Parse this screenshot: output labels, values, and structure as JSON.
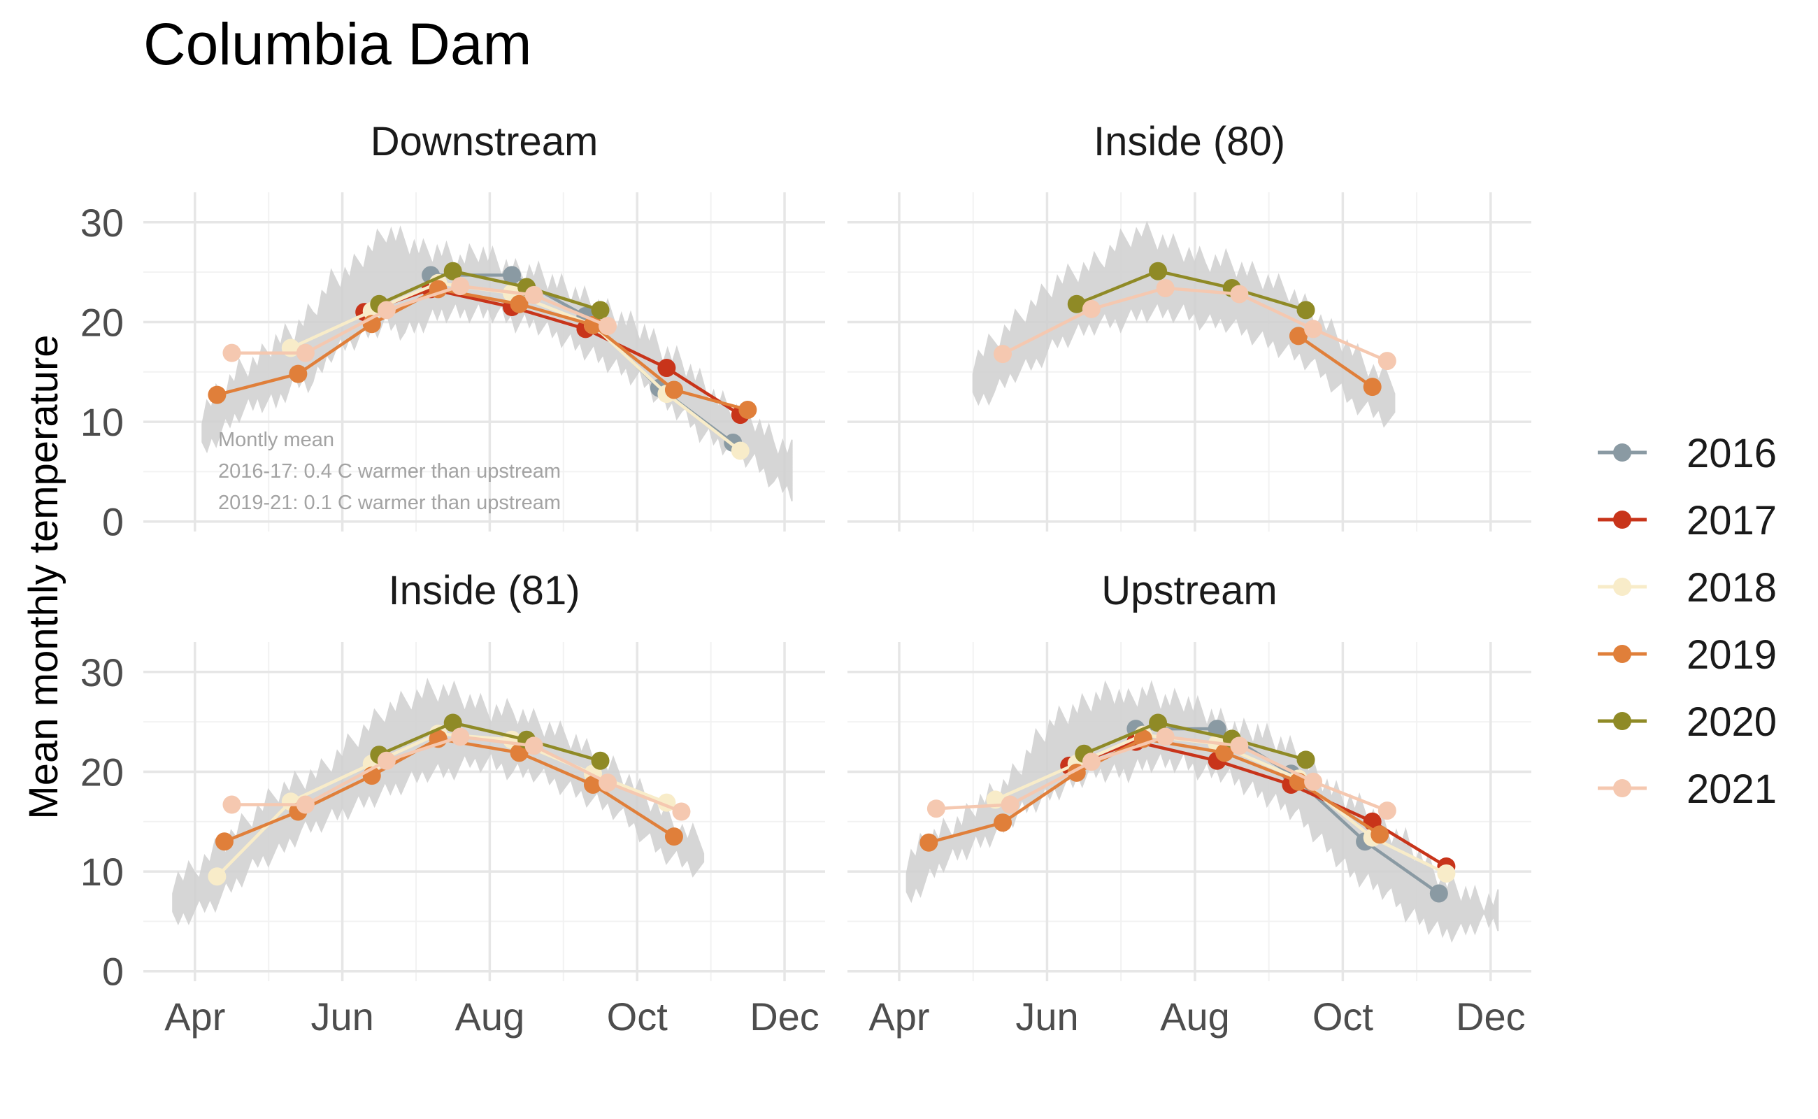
{
  "title": "Columbia Dam",
  "ylabel": "Mean monthly temperature",
  "colors": {
    "2016": "#8a9aa3",
    "2017": "#c8341a",
    "2018": "#f8ecc9",
    "2019": "#e07f3a",
    "2020": "#8f8a26",
    "2021": "#f5c8b0",
    "band": "#d2d2d2",
    "grid_major": "#e6e6e6",
    "grid_minor": "#f2f2f2",
    "text": "#4d4d4d",
    "annotation": "#a3a3a3"
  },
  "legend": {
    "entries": [
      "2016",
      "2017",
      "2018",
      "2019",
      "2020",
      "2021"
    ]
  },
  "chart_data": {
    "type": "line",
    "title": "Columbia Dam",
    "xlabel": "",
    "ylabel": "Mean monthly temperature",
    "x_ticks": [
      "Apr",
      "Jun",
      "Aug",
      "Oct",
      "Dec"
    ],
    "y_ticks": [
      0,
      10,
      20,
      30
    ],
    "ylim": [
      -1,
      33
    ],
    "x_unit": "month (1 = Jan 1, 4 = Apr 1)",
    "xlim": [
      3.3,
      12.55
    ],
    "grid": true,
    "legend_position": "right",
    "panels": [
      {
        "name": "Downstream",
        "annotation": [
          "Montly mean",
          "2016-17: 0.4 C warmer than upstream",
          "2019-21: 0.1 C warmer than upstream"
        ],
        "band": {
          "start": 4.1,
          "end": 12.1,
          "temp_low": [
            7,
            9,
            11,
            12,
            12,
            14,
            14,
            17,
            18,
            19,
            20,
            19,
            20,
            21,
            21,
            21,
            21,
            20,
            20,
            19,
            18,
            17,
            16,
            15,
            14,
            12,
            11,
            9,
            8,
            7,
            6,
            4,
            3
          ],
          "temp_high": [
            11,
            13,
            15,
            16,
            18,
            19,
            21,
            24,
            25,
            27,
            29,
            28,
            27,
            27,
            26,
            27,
            26,
            25,
            25,
            24,
            23,
            22,
            21,
            20,
            19,
            17,
            16,
            14,
            12,
            11,
            10,
            8,
            7
          ]
        },
        "series": [
          {
            "name": "2016",
            "points": [
              [
                7.2,
                24.7
              ],
              [
                8.3,
                24.7
              ],
              [
                9.3,
                20.6
              ],
              [
                10.3,
                13.4
              ],
              [
                11.3,
                7.9
              ]
            ]
          },
          {
            "name": "2017",
            "points": [
              [
                6.3,
                21.0
              ],
              [
                7.2,
                23.3
              ],
              [
                8.3,
                21.5
              ],
              [
                9.3,
                19.3
              ],
              [
                10.4,
                15.4
              ],
              [
                11.4,
                10.7
              ]
            ]
          },
          {
            "name": "2018",
            "points": [
              [
                5.3,
                17.4
              ],
              [
                6.4,
                21.1
              ],
              [
                7.3,
                23.9
              ],
              [
                8.3,
                22.9
              ],
              [
                9.4,
                19.7
              ],
              [
                10.4,
                12.8
              ],
              [
                11.4,
                7.1
              ]
            ]
          },
          {
            "name": "2019",
            "points": [
              [
                4.3,
                12.7
              ],
              [
                5.4,
                14.8
              ],
              [
                6.4,
                19.8
              ],
              [
                7.3,
                23.3
              ],
              [
                8.4,
                21.8
              ],
              [
                9.4,
                19.7
              ],
              [
                10.5,
                13.2
              ],
              [
                11.5,
                11.2
              ]
            ]
          },
          {
            "name": "2020",
            "points": [
              [
                6.5,
                21.8
              ],
              [
                7.5,
                25.1
              ],
              [
                8.5,
                23.5
              ],
              [
                9.5,
                21.2
              ]
            ]
          },
          {
            "name": "2021",
            "points": [
              [
                4.5,
                16.9
              ],
              [
                5.5,
                16.9
              ],
              [
                6.6,
                21.2
              ],
              [
                7.6,
                23.6
              ],
              [
                8.6,
                22.7
              ],
              [
                9.6,
                19.6
              ]
            ]
          }
        ]
      },
      {
        "name": "Inside (80)",
        "annotation": [],
        "band": {
          "start": 5.0,
          "end": 10.7,
          "temp_low": [
            12,
            13,
            15,
            16,
            18,
            19,
            20,
            20,
            21,
            21,
            21,
            20,
            20,
            19,
            18,
            17,
            16,
            14,
            12,
            11,
            10
          ],
          "temp_high": [
            16,
            18,
            20,
            22,
            24,
            25,
            26,
            28,
            29,
            28,
            27,
            26,
            26,
            25,
            24,
            23,
            21,
            19,
            17,
            15,
            14
          ]
        },
        "series": [
          {
            "name": "2019",
            "points": [
              [
                9.4,
                18.6
              ],
              [
                10.4,
                13.5
              ]
            ]
          },
          {
            "name": "2020",
            "points": [
              [
                6.4,
                21.8
              ],
              [
                7.5,
                25.1
              ],
              [
                8.5,
                23.4
              ],
              [
                9.5,
                21.2
              ]
            ]
          },
          {
            "name": "2021",
            "points": [
              [
                5.4,
                16.8
              ],
              [
                6.6,
                21.3
              ],
              [
                7.6,
                23.4
              ],
              [
                8.6,
                22.8
              ],
              [
                9.6,
                19.3
              ],
              [
                10.6,
                16.1
              ]
            ]
          }
        ]
      },
      {
        "name": "Inside (81)",
        "annotation": [],
        "band": {
          "start": 3.7,
          "end": 10.9,
          "temp_low": [
            5,
            6,
            7,
            9,
            11,
            12,
            14,
            15,
            16,
            17,
            18,
            19,
            20,
            20,
            21,
            21,
            20,
            20,
            19,
            18,
            17,
            16,
            14,
            12,
            11,
            10
          ],
          "temp_high": [
            9,
            10,
            12,
            14,
            16,
            18,
            19,
            20,
            22,
            24,
            26,
            27,
            28,
            28,
            27,
            26,
            26,
            25,
            24,
            23,
            21,
            20,
            18,
            16,
            14,
            13
          ]
        },
        "series": [
          {
            "name": "2018",
            "points": [
              [
                4.3,
                9.5
              ],
              [
                5.3,
                17.0
              ],
              [
                6.4,
                20.8
              ],
              [
                7.3,
                23.8
              ],
              [
                8.3,
                23.2
              ],
              [
                9.4,
                19.8
              ],
              [
                10.4,
                16.9
              ]
            ]
          },
          {
            "name": "2019",
            "points": [
              [
                4.4,
                13.0
              ],
              [
                5.4,
                16.0
              ],
              [
                6.4,
                19.6
              ],
              [
                7.3,
                23.3
              ],
              [
                8.4,
                21.9
              ],
              [
                9.4,
                18.7
              ],
              [
                10.5,
                13.5
              ]
            ]
          },
          {
            "name": "2020",
            "points": [
              [
                6.5,
                21.7
              ],
              [
                7.5,
                24.9
              ],
              [
                8.5,
                23.2
              ],
              [
                9.5,
                21.1
              ]
            ]
          },
          {
            "name": "2021",
            "points": [
              [
                4.5,
                16.7
              ],
              [
                5.5,
                16.7
              ],
              [
                6.6,
                21.1
              ],
              [
                7.6,
                23.5
              ],
              [
                8.6,
                22.6
              ],
              [
                9.6,
                18.9
              ],
              [
                10.6,
                16.0
              ]
            ]
          }
        ]
      },
      {
        "name": "Upstream",
        "annotation": [],
        "band": {
          "start": 4.1,
          "end": 12.1,
          "temp_low": [
            7,
            9,
            11,
            12,
            13,
            14,
            16,
            17,
            18,
            19,
            20,
            20,
            20,
            21,
            21,
            21,
            20,
            20,
            19,
            18,
            17,
            16,
            14,
            12,
            10,
            9,
            8,
            6,
            5,
            4,
            4,
            5,
            5
          ],
          "temp_high": [
            11,
            13,
            14,
            15,
            17,
            18,
            20,
            23,
            25,
            26,
            27,
            28,
            27,
            28,
            27,
            27,
            26,
            25,
            24,
            24,
            23,
            22,
            20,
            18,
            17,
            16,
            14,
            13,
            11,
            9,
            8,
            7,
            7
          ]
        },
        "series": [
          {
            "name": "2016",
            "points": [
              [
                7.2,
                24.3
              ],
              [
                8.3,
                24.3
              ],
              [
                9.3,
                19.8
              ],
              [
                10.3,
                13.0
              ],
              [
                11.3,
                7.8
              ]
            ]
          },
          {
            "name": "2017",
            "points": [
              [
                6.3,
                20.6
              ],
              [
                7.2,
                23.0
              ],
              [
                8.3,
                21.1
              ],
              [
                9.3,
                18.7
              ],
              [
                10.4,
                15.0
              ],
              [
                11.4,
                10.5
              ]
            ]
          },
          {
            "name": "2018",
            "points": [
              [
                5.3,
                17.2
              ],
              [
                6.4,
                20.8
              ],
              [
                7.3,
                23.7
              ],
              [
                8.3,
                22.8
              ],
              [
                9.4,
                19.3
              ],
              [
                10.4,
                13.4
              ],
              [
                11.4,
                9.8
              ]
            ]
          },
          {
            "name": "2019",
            "points": [
              [
                4.4,
                12.9
              ],
              [
                5.4,
                14.9
              ],
              [
                6.4,
                19.9
              ],
              [
                7.3,
                23.3
              ],
              [
                8.4,
                21.9
              ],
              [
                9.4,
                19.0
              ],
              [
                10.5,
                13.7
              ]
            ]
          },
          {
            "name": "2020",
            "points": [
              [
                6.5,
                21.8
              ],
              [
                7.5,
                24.9
              ],
              [
                8.5,
                23.3
              ],
              [
                9.5,
                21.2
              ]
            ]
          },
          {
            "name": "2021",
            "points": [
              [
                4.5,
                16.3
              ],
              [
                5.5,
                16.7
              ],
              [
                6.6,
                21.0
              ],
              [
                7.6,
                23.5
              ],
              [
                8.6,
                22.6
              ],
              [
                9.6,
                19.0
              ],
              [
                10.6,
                16.1
              ]
            ]
          }
        ]
      }
    ]
  }
}
